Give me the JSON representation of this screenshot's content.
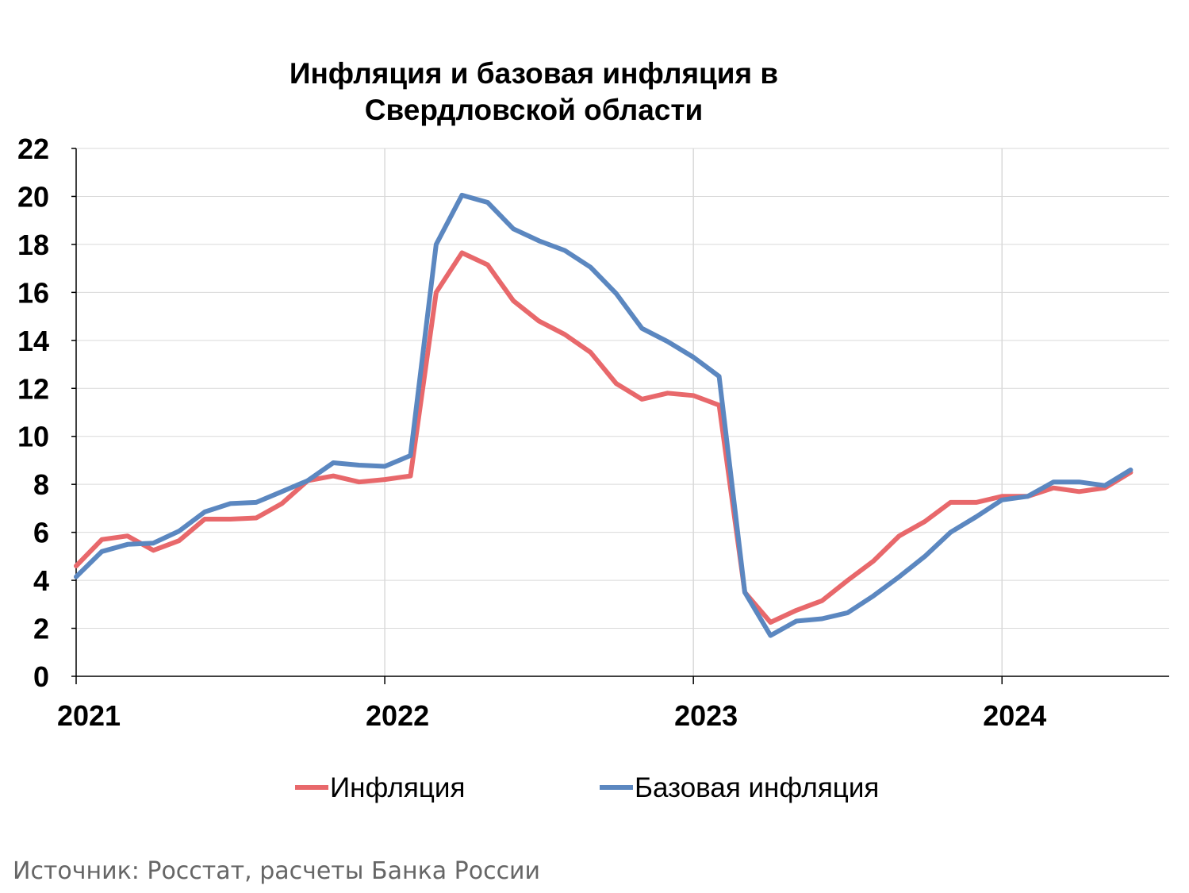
{
  "chart_data": {
    "type": "line",
    "title_line1": "Инфляция и базовая инфляция в",
    "title_line2": "Свердловской области",
    "xlabel": "",
    "ylabel": "",
    "ylim": [
      0,
      22
    ],
    "yticks": [
      "0",
      "2",
      "4",
      "6",
      "8",
      "10",
      "12",
      "14",
      "16",
      "18",
      "20",
      "22"
    ],
    "xticks": [
      "2021",
      "2022",
      "2023",
      "2024"
    ],
    "grid": true,
    "legend_position": "bottom",
    "x": [
      "2021-01",
      "2021-02",
      "2021-03",
      "2021-04",
      "2021-05",
      "2021-06",
      "2021-07",
      "2021-08",
      "2021-09",
      "2021-10",
      "2021-11",
      "2021-12",
      "2022-01",
      "2022-02",
      "2022-03",
      "2022-04",
      "2022-05",
      "2022-06",
      "2022-07",
      "2022-08",
      "2022-09",
      "2022-10",
      "2022-11",
      "2022-12",
      "2023-01",
      "2023-02",
      "2023-03",
      "2023-04",
      "2023-05",
      "2023-06",
      "2023-07",
      "2023-08",
      "2023-09",
      "2023-10",
      "2023-11",
      "2023-12",
      "2024-01",
      "2024-02",
      "2024-03",
      "2024-04",
      "2024-05",
      "2024-06"
    ],
    "series": [
      {
        "name": "Инфляция",
        "color": "#e8686b",
        "values": [
          4.6,
          5.7,
          5.85,
          5.25,
          5.65,
          6.55,
          6.55,
          6.6,
          7.2,
          8.15,
          8.35,
          8.1,
          8.2,
          8.35,
          16.0,
          17.65,
          17.15,
          15.65,
          14.8,
          14.25,
          13.5,
          12.2,
          11.55,
          11.8,
          11.7,
          11.3,
          3.5,
          2.25,
          2.75,
          3.15,
          4.0,
          4.8,
          5.85,
          6.45,
          7.25,
          7.25,
          7.5,
          7.5,
          7.85,
          7.7,
          7.85,
          8.5
        ]
      },
      {
        "name": "Базовая инфляция",
        "color": "#5b87c0",
        "values": [
          4.15,
          5.2,
          5.5,
          5.55,
          6.05,
          6.85,
          7.2,
          7.25,
          7.7,
          8.15,
          8.9,
          8.8,
          8.75,
          9.2,
          18.0,
          20.05,
          19.75,
          18.65,
          18.15,
          17.75,
          17.05,
          15.95,
          14.5,
          13.95,
          13.3,
          12.5,
          3.5,
          1.7,
          2.3,
          2.4,
          2.65,
          3.35,
          4.15,
          5.0,
          6.0,
          6.65,
          7.35,
          7.5,
          8.1,
          8.1,
          7.95,
          8.6
        ]
      }
    ]
  },
  "source_text": "Источник: Росстат, расчеты Банка России"
}
